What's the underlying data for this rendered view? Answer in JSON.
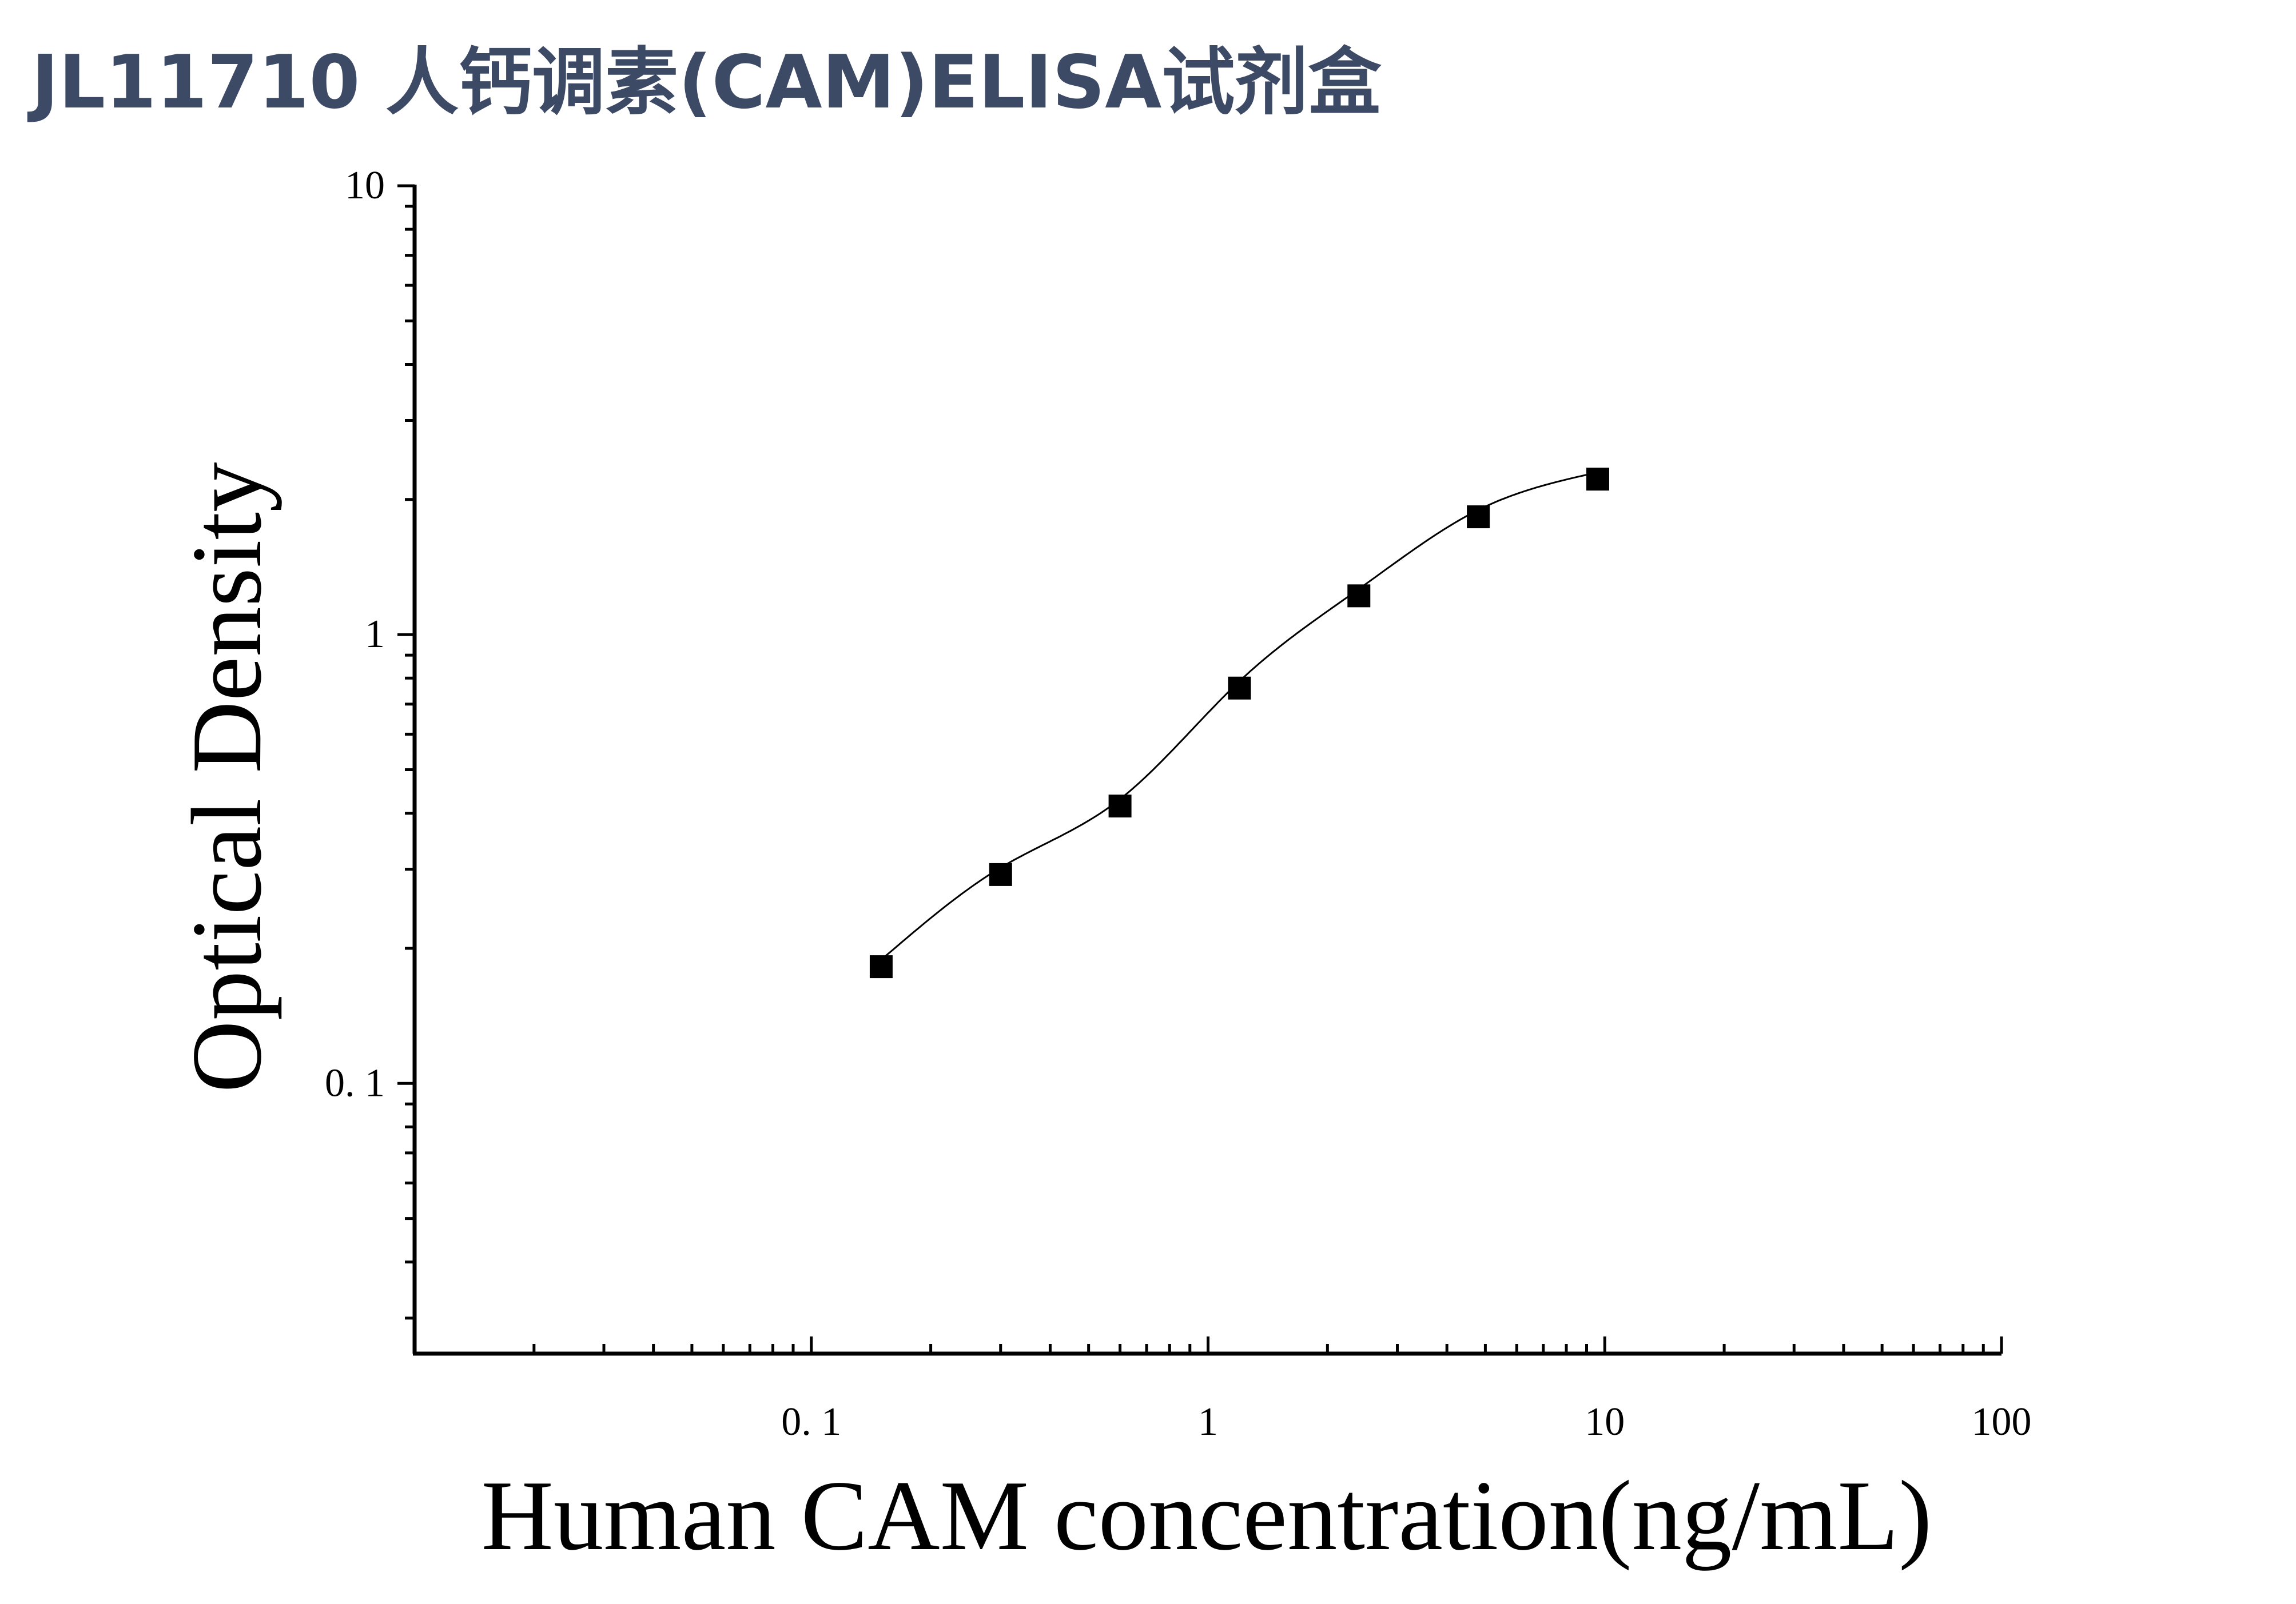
{
  "title": "JL11710 人钙调素(CAM)ELISA试剂盒",
  "chart_data": {
    "type": "scatter",
    "title": "",
    "xlabel": "Human CAM concentration(ng/mL)",
    "ylabel": "Optical Density",
    "xscale": "log",
    "yscale": "log",
    "xlim": [
      0.01,
      100
    ],
    "ylim": [
      0.025,
      10
    ],
    "x_tick_labels": [
      "0. 1",
      "1",
      "10",
      "100"
    ],
    "x_tick_values": [
      0.1,
      1,
      10,
      100
    ],
    "y_tick_labels": [
      "0. 1",
      "1",
      "10"
    ],
    "y_tick_values": [
      0.1,
      1,
      10
    ],
    "series": [
      {
        "x": [
          0.15,
          0.3,
          0.6,
          1.2,
          2.4,
          4.8,
          9.6
        ],
        "y": [
          0.182,
          0.292,
          0.415,
          0.76,
          1.22,
          1.83,
          2.22
        ]
      }
    ],
    "fit_curve": {
      "present": true,
      "x_range": [
        0.15,
        9.6
      ]
    },
    "marker": "square",
    "color": "#000000",
    "grid": false,
    "legend": "none"
  }
}
